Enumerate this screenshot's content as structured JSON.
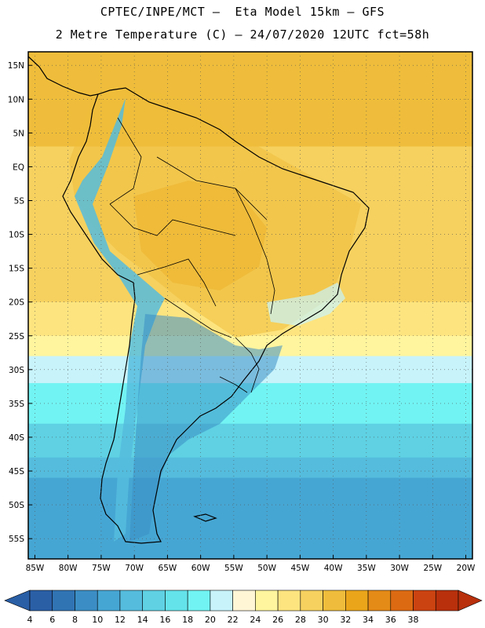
{
  "header": {
    "line1": "CPTEC/INPE/MCT –  Eta Model 15km – GFS",
    "line2": "2 Metre Temperature (C) – 24/07/2020 12UTC fct=58h"
  },
  "map": {
    "lon_range": [
      -86,
      -19
    ],
    "lat_range": [
      -58,
      17
    ],
    "lon_ticks": [
      "85W",
      "80W",
      "75W",
      "70W",
      "65W",
      "60W",
      "55W",
      "50W",
      "45W",
      "40W",
      "35W",
      "30W",
      "25W",
      "20W"
    ],
    "lon_values": [
      -85,
      -80,
      -75,
      -70,
      -65,
      -60,
      -55,
      -50,
      -45,
      -40,
      -35,
      -30,
      -25,
      -20
    ],
    "lat_ticks": [
      "15N",
      "10N",
      "5N",
      "EQ",
      "5S",
      "10S",
      "15S",
      "20S",
      "25S",
      "30S",
      "35S",
      "40S",
      "45S",
      "50S",
      "55S"
    ],
    "lat_values": [
      15,
      10,
      5,
      0,
      -5,
      -10,
      -15,
      -20,
      -25,
      -30,
      -35,
      -40,
      -45,
      -50,
      -55
    ],
    "grid": true,
    "temperature_bands": [
      {
        "lat_from": 17,
        "lat_to": 3,
        "value": 28
      },
      {
        "lat_from": 3,
        "lat_to": -20,
        "value": 26
      },
      {
        "lat_from": -20,
        "lat_to": -25,
        "value": 24
      },
      {
        "lat_from": -25,
        "lat_to": -28,
        "value": 22
      },
      {
        "lat_from": -28,
        "lat_to": -32,
        "value": 18
      },
      {
        "lat_from": -32,
        "lat_to": -38,
        "value": 16
      },
      {
        "lat_from": -38,
        "lat_to": -43,
        "value": 12
      },
      {
        "lat_from": -43,
        "lat_to": -46,
        "value": 10
      },
      {
        "lat_from": -46,
        "lat_to": -58,
        "value": 8
      }
    ]
  },
  "colorbar": {
    "labels": [
      "4",
      "6",
      "8",
      "10",
      "12",
      "14",
      "16",
      "18",
      "20",
      "22",
      "24",
      "26",
      "28",
      "30",
      "32",
      "34",
      "36",
      "38"
    ],
    "colors": [
      "#2a5fa6",
      "#3174b4",
      "#3b8ec5",
      "#46a6d3",
      "#55bcdd",
      "#5fd1e3",
      "#64e3ea",
      "#72f3f3",
      "#c8f3fb",
      "#fff6d6",
      "#fff59e",
      "#fde47f",
      "#f6d15f",
      "#efbd3b",
      "#eaa51a",
      "#e48a17",
      "#dc6a12",
      "#cb4310",
      "#b8300c"
    ],
    "min_arrow_color": "#2a5fa6",
    "max_arrow_color": "#b8300c"
  }
}
